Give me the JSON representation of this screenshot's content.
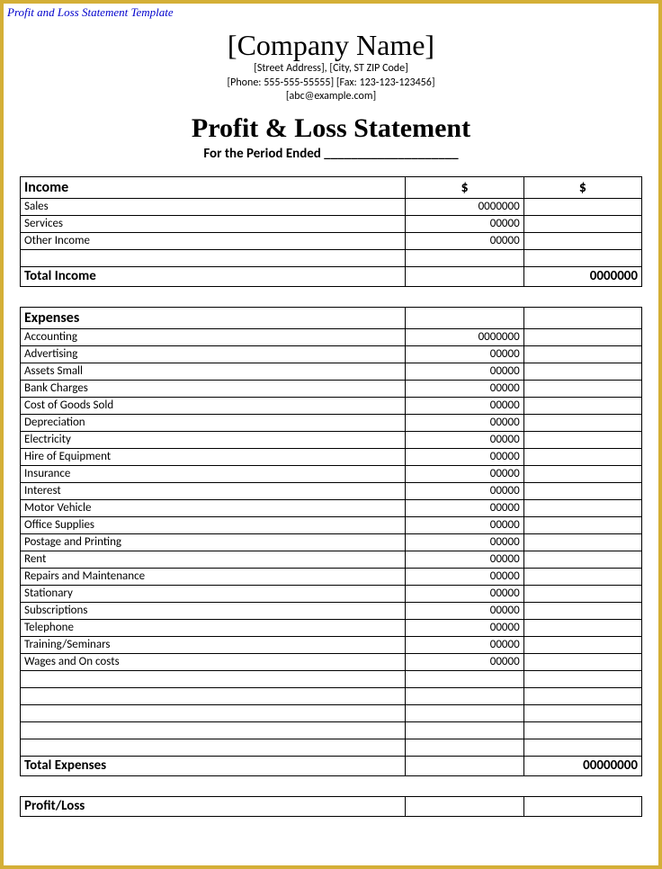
{
  "template_label": "Profit and Loss Statement Template",
  "header": {
    "company_name": "[Company Name]",
    "address": "[Street Address], [City, ST ZIP Code]",
    "contact": "[Phone: 555-555-55555] [Fax: 123-123-123456]",
    "email": "[abc@example.com]",
    "title": "Profit & Loss Statement",
    "period": "For the Period Ended ____________________"
  },
  "income": {
    "header_label": "Income",
    "header_col1": "$",
    "header_col2": "$",
    "rows": [
      {
        "label": "Sales",
        "v1": "0000000",
        "v2": ""
      },
      {
        "label": "Services",
        "v1": "00000",
        "v2": ""
      },
      {
        "label": "Other Income",
        "v1": "00000",
        "v2": ""
      }
    ],
    "total_label": "Total Income",
    "total_value": "0000000"
  },
  "expenses": {
    "header_label": "Expenses",
    "rows": [
      {
        "label": "Accounting",
        "v1": "0000000",
        "v2": ""
      },
      {
        "label": "Advertising",
        "v1": "00000",
        "v2": ""
      },
      {
        "label": "Assets Small",
        "v1": "00000",
        "v2": ""
      },
      {
        "label": "Bank Charges",
        "v1": "00000",
        "v2": ""
      },
      {
        "label": "Cost of Goods Sold",
        "v1": "00000",
        "v2": ""
      },
      {
        "label": "Depreciation",
        "v1": "00000",
        "v2": ""
      },
      {
        "label": "Electricity",
        "v1": "00000",
        "v2": ""
      },
      {
        "label": "Hire of Equipment",
        "v1": "00000",
        "v2": ""
      },
      {
        "label": "Insurance",
        "v1": "00000",
        "v2": ""
      },
      {
        "label": "Interest",
        "v1": "00000",
        "v2": ""
      },
      {
        "label": "Motor Vehicle",
        "v1": "00000",
        "v2": ""
      },
      {
        "label": "Office Supplies",
        "v1": "00000",
        "v2": ""
      },
      {
        "label": "Postage and Printing",
        "v1": "00000",
        "v2": ""
      },
      {
        "label": "Rent",
        "v1": "00000",
        "v2": ""
      },
      {
        "label": "Repairs and Maintenance",
        "v1": "00000",
        "v2": ""
      },
      {
        "label": "Stationary",
        "v1": "00000",
        "v2": ""
      },
      {
        "label": "Subscriptions",
        "v1": "00000",
        "v2": ""
      },
      {
        "label": "Telephone",
        "v1": "00000",
        "v2": ""
      },
      {
        "label": "Training/Seminars",
        "v1": "00000",
        "v2": ""
      },
      {
        "label": "Wages and On costs",
        "v1": "00000",
        "v2": ""
      }
    ],
    "total_label": "Total Expenses",
    "total_value": "00000000"
  },
  "profit_loss": {
    "label": "Profit/Loss",
    "value": ""
  },
  "styling": {
    "border_color": "#d4af37",
    "text_color": "#000000",
    "link_color": "#0000cc",
    "background": "#ffffff",
    "serif_font": "Times New Roman",
    "sans_font": "Calibri"
  }
}
